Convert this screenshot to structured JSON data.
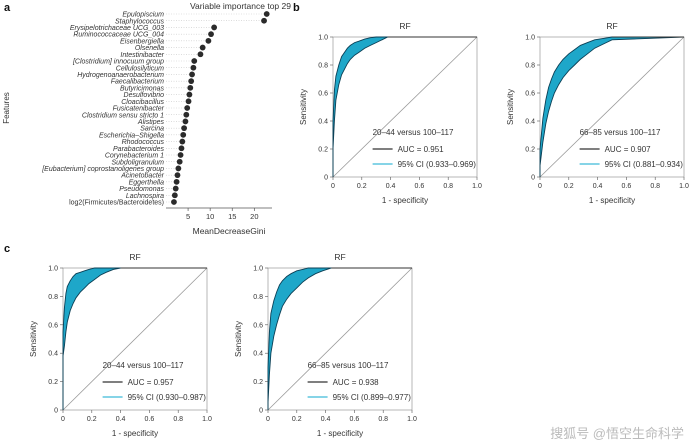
{
  "panels": {
    "a": {
      "letter": "a"
    },
    "b": {
      "letter": "b"
    },
    "c": {
      "letter": "c"
    }
  },
  "watermark": "搜狐号 @悟空生命科学",
  "colors": {
    "ribbon": "#1ea7c9",
    "ribbon_edge": "#0b3f55",
    "legend_line": "#333333",
    "legend_ci": "#5fc6df",
    "diagonal": "#9a9a9a",
    "dot": "#2b2b2b"
  },
  "chart_data": [
    {
      "id": "importance",
      "type": "scatter",
      "title": "Variable importance top 29",
      "xlabel": "MeanDecreaseGini",
      "ylabel": "Features",
      "xlim": [
        0,
        24
      ],
      "xticks": [
        "5",
        "10",
        "15",
        "20"
      ],
      "xtick_values": [
        5,
        10,
        15,
        20
      ],
      "features": [
        "Epulopiscium",
        "Staphylococcus",
        "Erysipelotrichaceae UCG_003",
        "Ruminococcaceae UCG_004",
        "Eisenbergiella",
        "Olsenella",
        "Intestinibacter",
        "[Clostridium] innocuum group",
        "Cellulosilyticum",
        "Hydrogenoanaerobacterium",
        "Faecalibacterium",
        "Butyricimonas",
        "Desulfovibrio",
        "Cloacibacillus",
        "Fusicatenibacter",
        "Clostridium sensu stricto 1",
        "Alistipes",
        "Sarcina",
        "Escherichia–Shigella",
        "Rhodococcus",
        "Parabacteroides",
        "Corynebacterium 1",
        "Subdoligranulum",
        "[Eubacterium] coprostanoligenes group",
        "Acinetobacter",
        "Eggerthella",
        "Pseudomonas",
        "Lachnospira",
        "log2(Firmicutes/Bacteroidetes)"
      ],
      "values": [
        22.8,
        22.2,
        10.9,
        10.2,
        9.6,
        8.3,
        7.8,
        6.4,
        6.2,
        5.9,
        5.7,
        5.5,
        5.3,
        5.1,
        4.8,
        4.6,
        4.4,
        4.1,
        3.9,
        3.7,
        3.5,
        3.3,
        3.1,
        2.8,
        2.6,
        2.4,
        2.2,
        2.0,
        1.8
      ]
    },
    {
      "id": "roc-b1",
      "type": "area",
      "title": "RF",
      "xlabel": "1 - specificity",
      "ylabel": "Sensitivity",
      "xlim": [
        0,
        1
      ],
      "ylim": [
        0,
        1
      ],
      "ticks": [
        "0",
        "0.2",
        "0.4",
        "0.6",
        "0.8",
        "1.0"
      ],
      "tick_values": [
        0,
        0.2,
        0.4,
        0.6,
        0.8,
        1.0
      ],
      "comparison": "20–44 versus 100–117",
      "auc_label": "AUC = 0.951",
      "ci_label": "95% CI (0.933–0.969)",
      "roc": {
        "x": [
          0.0,
          0.0,
          0.01,
          0.02,
          0.04,
          0.06,
          0.08,
          0.1,
          0.12,
          0.15,
          0.18,
          0.22,
          0.26,
          0.3,
          0.34,
          0.38,
          1.0
        ],
        "upper": [
          0.0,
          0.4,
          0.62,
          0.72,
          0.8,
          0.86,
          0.89,
          0.92,
          0.94,
          0.96,
          0.97,
          0.985,
          0.995,
          1.0,
          1.0,
          1.0,
          1.0
        ],
        "lower": [
          0.0,
          0.2,
          0.4,
          0.55,
          0.66,
          0.73,
          0.77,
          0.81,
          0.84,
          0.87,
          0.89,
          0.92,
          0.94,
          0.96,
          0.98,
          1.0,
          1.0
        ]
      }
    },
    {
      "id": "roc-b2",
      "type": "area",
      "title": "RF",
      "xlabel": "1 - specificity",
      "ylabel": "Sensitivity",
      "xlim": [
        0,
        1
      ],
      "ylim": [
        0,
        1
      ],
      "ticks": [
        "0",
        "0.2",
        "0.4",
        "0.6",
        "0.8",
        "1.0"
      ],
      "tick_values": [
        0,
        0.2,
        0.4,
        0.6,
        0.8,
        1.0
      ],
      "comparison": "66–85 versus 100–117",
      "auc_label": "AUC = 0.907",
      "ci_label": "95% CI (0.881–0.934)",
      "roc": {
        "x": [
          0.0,
          0.0,
          0.02,
          0.04,
          0.06,
          0.08,
          0.1,
          0.13,
          0.16,
          0.2,
          0.24,
          0.28,
          0.33,
          0.38,
          0.44,
          0.5,
          1.0
        ],
        "upper": [
          0.0,
          0.2,
          0.42,
          0.55,
          0.64,
          0.7,
          0.75,
          0.8,
          0.84,
          0.88,
          0.91,
          0.94,
          0.96,
          0.98,
          0.99,
          1.0,
          1.0
        ],
        "lower": [
          0.0,
          0.08,
          0.25,
          0.38,
          0.47,
          0.54,
          0.6,
          0.66,
          0.71,
          0.76,
          0.8,
          0.84,
          0.88,
          0.92,
          0.95,
          0.98,
          1.0
        ]
      }
    },
    {
      "id": "roc-c1",
      "type": "area",
      "title": "RF",
      "xlabel": "1 - specificity",
      "ylabel": "Sensitivity",
      "xlim": [
        0,
        1
      ],
      "ylim": [
        0,
        1
      ],
      "ticks": [
        "0",
        "0.2",
        "0.4",
        "0.6",
        "0.8",
        "1.0"
      ],
      "tick_values": [
        0,
        0.2,
        0.4,
        0.6,
        0.8,
        1.0
      ],
      "comparison": "20–44 versus 100–117",
      "auc_label": "AUC = 0.957",
      "ci_label": "95% CI (0.930–0.987)",
      "roc": {
        "x": [
          0.0,
          0.0,
          0.01,
          0.02,
          0.03,
          0.05,
          0.07,
          0.09,
          0.12,
          0.15,
          0.18,
          0.22,
          0.26,
          0.3,
          0.35,
          0.4,
          1.0
        ],
        "upper": [
          0.0,
          0.55,
          0.72,
          0.82,
          0.87,
          0.91,
          0.94,
          0.96,
          0.97,
          0.98,
          0.99,
          1.0,
          1.0,
          1.0,
          1.0,
          1.0,
          1.0
        ],
        "lower": [
          0.0,
          0.38,
          0.45,
          0.55,
          0.62,
          0.7,
          0.75,
          0.79,
          0.83,
          0.86,
          0.89,
          0.92,
          0.95,
          0.97,
          0.99,
          1.0,
          1.0
        ]
      }
    },
    {
      "id": "roc-c2",
      "type": "area",
      "title": "RF",
      "xlabel": "1 - specificity",
      "ylabel": "Sensitivity",
      "xlim": [
        0,
        1
      ],
      "ylim": [
        0,
        1
      ],
      "ticks": [
        "0",
        "0.2",
        "0.4",
        "0.6",
        "0.8",
        "1.0"
      ],
      "tick_values": [
        0,
        0.2,
        0.4,
        0.6,
        0.8,
        1.0
      ],
      "comparison": "66–85 versus 100–117",
      "auc_label": "AUC = 0.938",
      "ci_label": "95% CI (0.899–0.977)",
      "roc": {
        "x": [
          0.0,
          0.0,
          0.01,
          0.02,
          0.04,
          0.06,
          0.08,
          0.1,
          0.13,
          0.16,
          0.2,
          0.24,
          0.28,
          0.33,
          0.38,
          0.44,
          1.0
        ],
        "upper": [
          0.0,
          0.3,
          0.55,
          0.68,
          0.77,
          0.83,
          0.88,
          0.91,
          0.94,
          0.96,
          0.98,
          0.99,
          1.0,
          1.0,
          1.0,
          1.0,
          1.0
        ],
        "lower": [
          0.0,
          0.05,
          0.25,
          0.4,
          0.52,
          0.6,
          0.67,
          0.73,
          0.78,
          0.82,
          0.86,
          0.9,
          0.93,
          0.96,
          0.98,
          1.0,
          1.0
        ]
      }
    }
  ]
}
